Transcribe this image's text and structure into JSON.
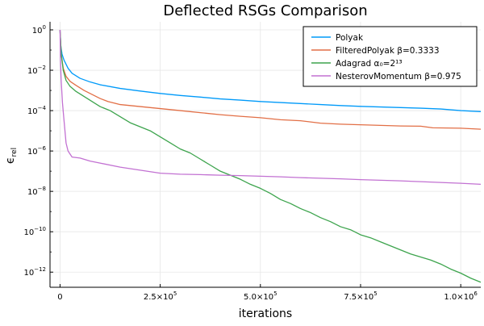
{
  "chart_data": {
    "type": "line",
    "title": "Deflected RSGs Comparison",
    "xlabel": "iterations",
    "ylabel": "ϵ",
    "ylabel_subscript": "rel",
    "xscale": "linear",
    "yscale": "log",
    "xlim": [
      -25000,
      1050000
    ],
    "ylim_log10": [
      -12.75,
      0.4
    ],
    "grid": true,
    "legend_position": "top-right",
    "x_ticks": [
      {
        "value": 0,
        "base": "0",
        "exp": ""
      },
      {
        "value": 250000,
        "base": "2.5×10",
        "exp": "5"
      },
      {
        "value": 500000,
        "base": "5.0×10",
        "exp": "5"
      },
      {
        "value": 750000,
        "base": "7.5×10",
        "exp": "5"
      },
      {
        "value": 1000000,
        "base": "1.0×10",
        "exp": "6"
      }
    ],
    "y_ticks": [
      {
        "log10": 0,
        "base": "10",
        "exp": "0"
      },
      {
        "log10": -2,
        "base": "10",
        "exp": "−2"
      },
      {
        "log10": -4,
        "base": "10",
        "exp": "−4"
      },
      {
        "log10": -6,
        "base": "10",
        "exp": "−6"
      },
      {
        "log10": -8,
        "base": "10",
        "exp": "−8"
      },
      {
        "log10": -10,
        "base": "10",
        "exp": "−10"
      },
      {
        "log10": -12,
        "base": "10",
        "exp": "−12"
      }
    ],
    "series": [
      {
        "name": "Polyak",
        "color": "#009af9",
        "x": [
          0,
          2000,
          5000,
          10000,
          20000,
          30000,
          50000,
          75000,
          100000,
          150000,
          200000,
          250000,
          300000,
          350000,
          400000,
          450000,
          500000,
          550000,
          600000,
          650000,
          700000,
          750000,
          800000,
          850000,
          900000,
          950000,
          1000000,
          1050000
        ],
        "y_log10": [
          0,
          -0.8,
          -1.2,
          -1.5,
          -1.9,
          -2.15,
          -2.4,
          -2.58,
          -2.72,
          -2.9,
          -3.03,
          -3.15,
          -3.25,
          -3.33,
          -3.42,
          -3.48,
          -3.55,
          -3.6,
          -3.65,
          -3.7,
          -3.75,
          -3.79,
          -3.82,
          -3.85,
          -3.88,
          -3.92,
          -4.0,
          -4.05
        ]
      },
      {
        "name": "FilteredPolyak β=0.3333",
        "color": "#e26f46",
        "x": [
          0,
          3000,
          8000,
          15000,
          25000,
          40000,
          60000,
          80000,
          100000,
          120000,
          150000,
          200000,
          250000,
          300000,
          350000,
          400000,
          450000,
          500000,
          550000,
          600000,
          650000,
          700000,
          750000,
          800000,
          850000,
          900000,
          930000,
          1000000,
          1050000
        ],
        "y_log10": [
          0,
          -1.2,
          -1.9,
          -2.3,
          -2.55,
          -2.75,
          -3.0,
          -3.2,
          -3.4,
          -3.55,
          -3.7,
          -3.8,
          -3.9,
          -4.0,
          -4.1,
          -4.2,
          -4.28,
          -4.35,
          -4.45,
          -4.5,
          -4.62,
          -4.67,
          -4.7,
          -4.73,
          -4.76,
          -4.77,
          -4.85,
          -4.87,
          -4.92
        ]
      },
      {
        "name": "Adagrad α₀=2¹³",
        "color": "#3da44d",
        "x": [
          0,
          3000,
          8000,
          15000,
          25000,
          40000,
          60000,
          80000,
          100000,
          125000,
          150000,
          175000,
          200000,
          225000,
          250000,
          275000,
          300000,
          325000,
          350000,
          375000,
          400000,
          425000,
          450000,
          475000,
          500000,
          525000,
          550000,
          575000,
          600000,
          625000,
          650000,
          675000,
          700000,
          725000,
          750000,
          775000,
          800000,
          825000,
          850000,
          875000,
          900000,
          925000,
          950000,
          975000,
          1000000,
          1025000,
          1050000
        ],
        "y_log10": [
          -0.05,
          -1.2,
          -2.0,
          -2.5,
          -2.8,
          -3.05,
          -3.3,
          -3.55,
          -3.8,
          -4.0,
          -4.3,
          -4.6,
          -4.8,
          -5.0,
          -5.3,
          -5.6,
          -5.9,
          -6.1,
          -6.4,
          -6.7,
          -7.0,
          -7.2,
          -7.4,
          -7.65,
          -7.85,
          -8.1,
          -8.4,
          -8.6,
          -8.85,
          -9.05,
          -9.3,
          -9.5,
          -9.75,
          -9.9,
          -10.15,
          -10.3,
          -10.5,
          -10.7,
          -10.9,
          -11.1,
          -11.25,
          -11.4,
          -11.6,
          -11.85,
          -12.05,
          -12.3,
          -12.5
        ]
      },
      {
        "name": "NesterovMomentum β=0.975",
        "color": "#c271d2",
        "x": [
          0,
          1000,
          3000,
          6000,
          10000,
          15000,
          20000,
          30000,
          50000,
          75000,
          100000,
          150000,
          200000,
          250000,
          300000,
          350000,
          400000,
          450000,
          500000,
          550000,
          600000,
          650000,
          700000,
          750000,
          800000,
          850000,
          900000,
          950000,
          1000000,
          1050000
        ],
        "y_log10": [
          0,
          -1.5,
          -2.55,
          -3.6,
          -4.5,
          -5.6,
          -6.0,
          -6.3,
          -6.35,
          -6.5,
          -6.6,
          -6.8,
          -6.95,
          -7.1,
          -7.15,
          -7.17,
          -7.2,
          -7.22,
          -7.25,
          -7.28,
          -7.32,
          -7.35,
          -7.38,
          -7.42,
          -7.45,
          -7.48,
          -7.52,
          -7.56,
          -7.6,
          -7.65
        ]
      }
    ]
  }
}
